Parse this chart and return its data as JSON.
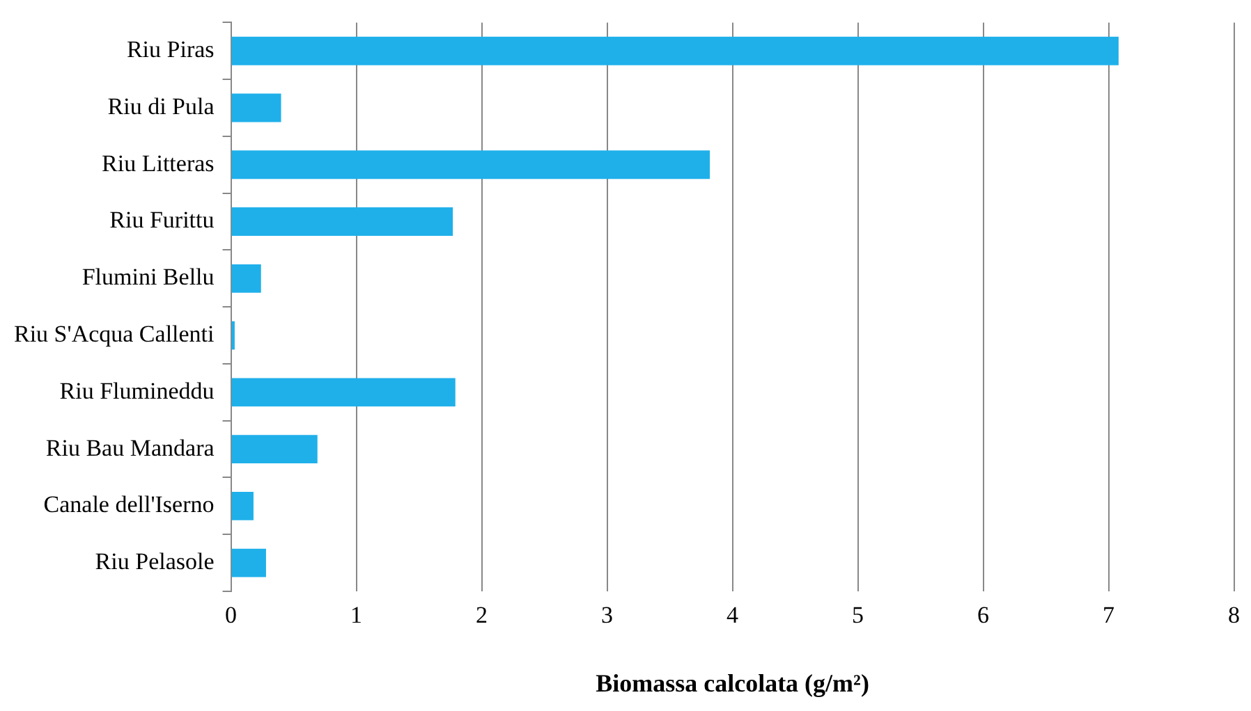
{
  "chart_data": {
    "type": "bar",
    "orientation": "horizontal",
    "xlabel": "Biomassa calcolata (g/m²)",
    "categories": [
      "Riu Piras",
      "Riu di Pula",
      "Riu Litteras",
      "Riu Furittu",
      "Flumini Bellu",
      "Riu S'Acqua Callenti",
      "Riu Flumineddu",
      "Riu Bau Mandara",
      "Canale dell'Iserno",
      "Riu Pelasole"
    ],
    "values": [
      7.08,
      0.4,
      3.82,
      1.77,
      0.24,
      0.03,
      1.79,
      0.69,
      0.18,
      0.28
    ],
    "color": "#1fb0ea",
    "xlim": [
      0,
      8
    ],
    "xticks": [
      0,
      1,
      2,
      3,
      4,
      5,
      6,
      7,
      8
    ],
    "grid": "x"
  }
}
